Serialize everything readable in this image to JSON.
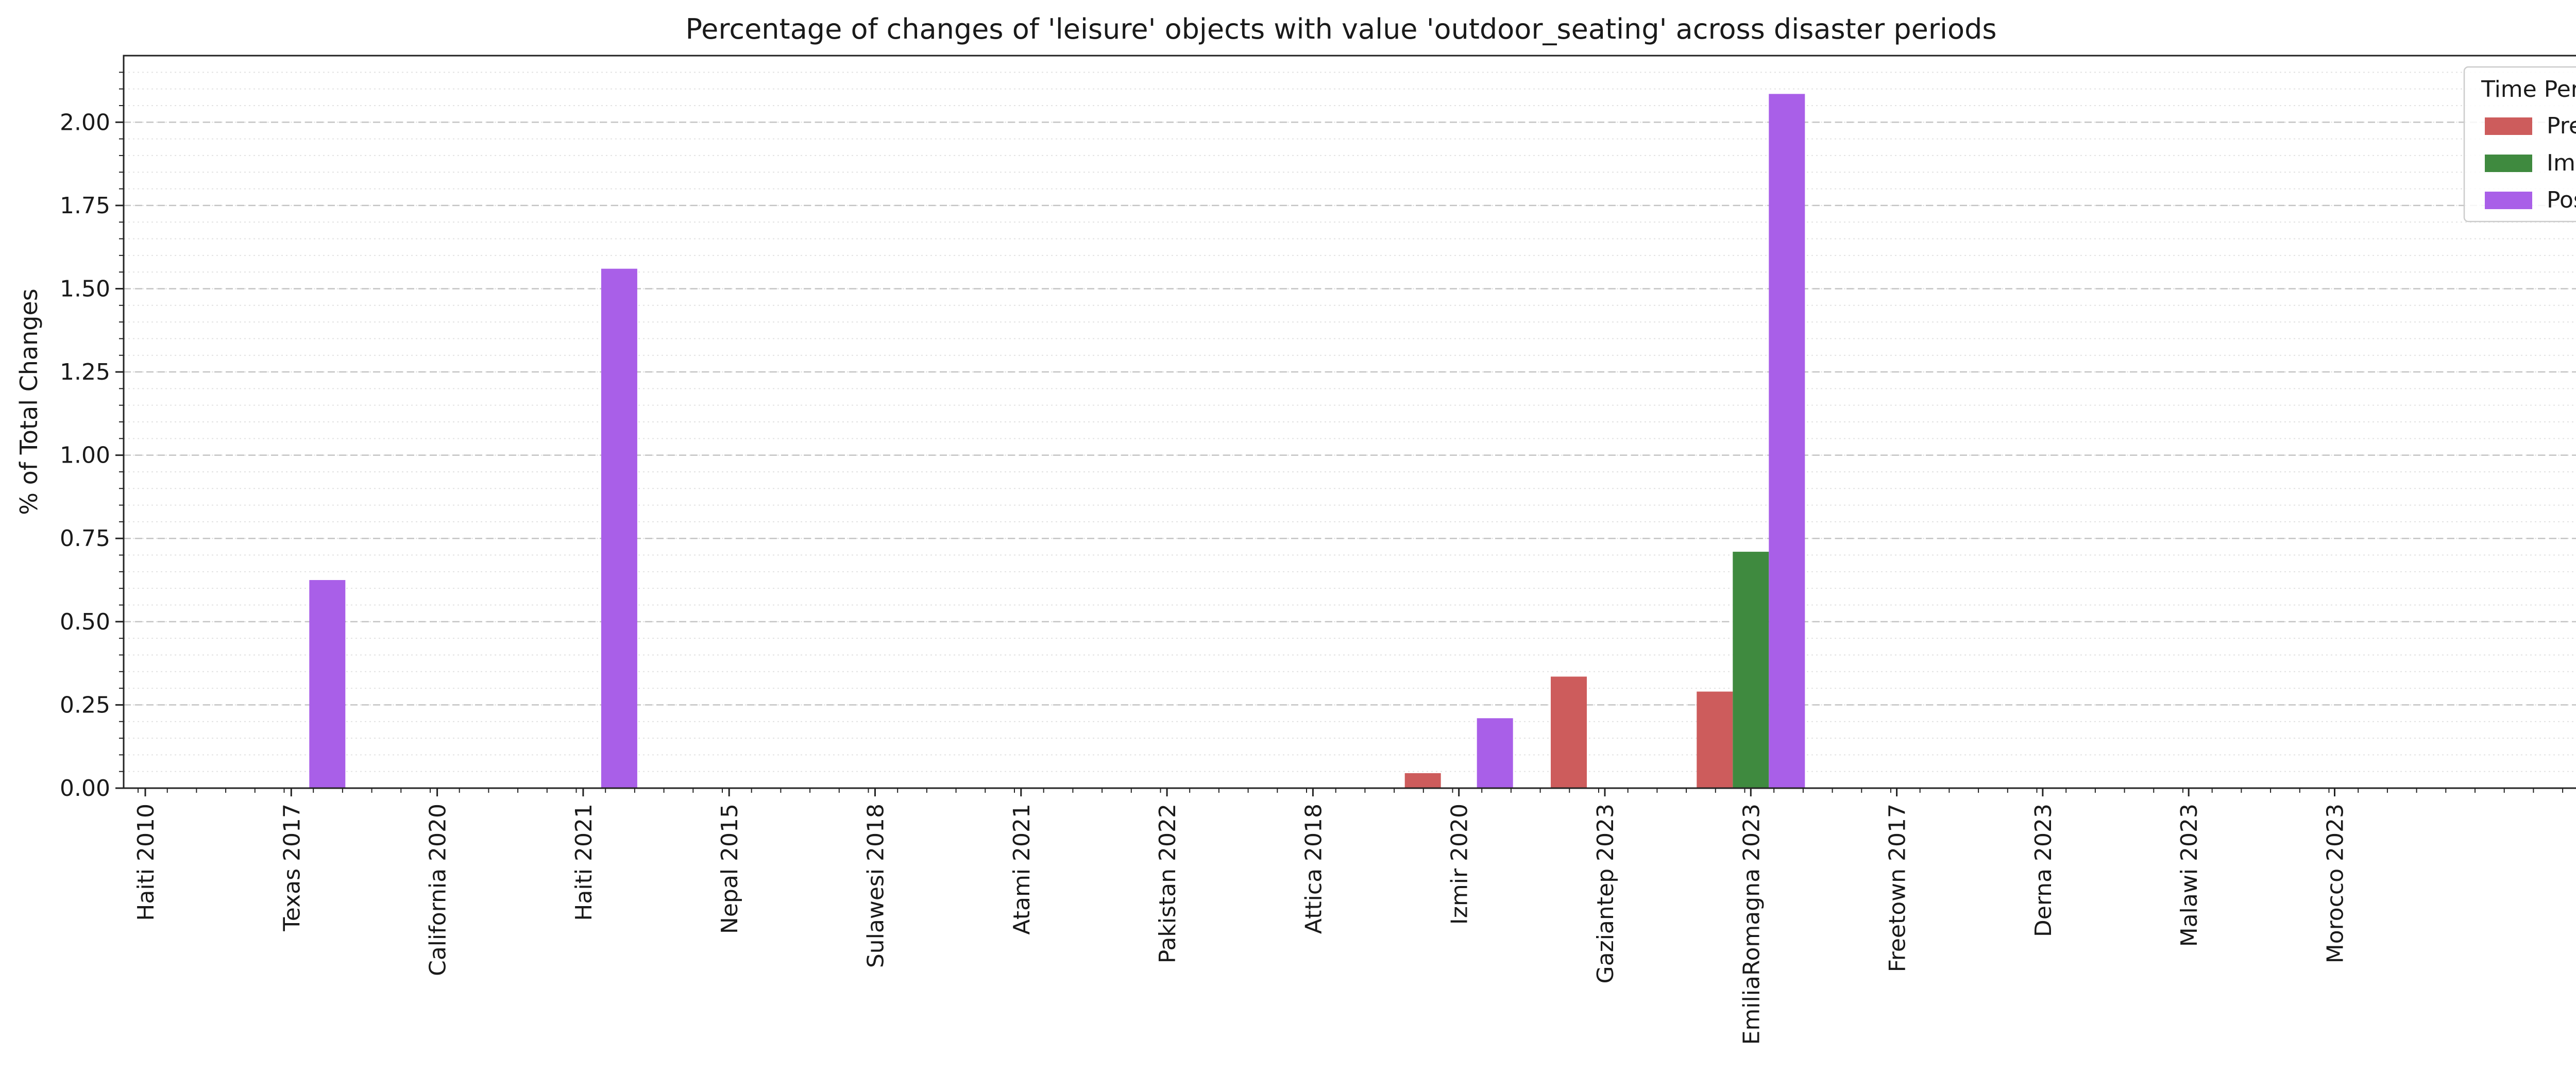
{
  "chart_data": {
    "type": "bar",
    "title": "Percentage of changes of 'leisure' objects with value 'outdoor_seating' across disaster periods",
    "xlabel": "",
    "ylabel": "% of Total Changes",
    "ylim": [
      0,
      2.2
    ],
    "yticks": [
      "0.00",
      "0.25",
      "0.50",
      "0.75",
      "1.00",
      "1.25",
      "1.50",
      "1.75",
      "2.00"
    ],
    "grid": true,
    "legend": {
      "title": "Time Period",
      "placement": "top-right"
    },
    "categories": [
      "Haiti 2010",
      "Texas 2017",
      "California 2020",
      "Haiti 2021",
      "Nepal 2015",
      "Sulawesi 2018",
      "Atami 2021",
      "Pakistan 2022",
      "Attica 2018",
      "Izmir 2020",
      "Gaziantep 2023",
      "EmiliaRomagna 2023",
      "Freetown 2017",
      "Derna 2023",
      "Malawi 2023",
      "Morocco 2023"
    ],
    "series": [
      {
        "name": "Pre",
        "color": "#cd5c5c",
        "values": [
          0,
          0,
          0,
          0,
          0,
          0,
          0,
          0,
          0,
          0.045,
          0.335,
          0.29,
          0,
          0,
          0,
          0
        ]
      },
      {
        "name": "Imm",
        "color": "#3f8a3f",
        "values": [
          0,
          0,
          0,
          0,
          0,
          0,
          0,
          0,
          0,
          0,
          0,
          0.71,
          0,
          0,
          0,
          0
        ]
      },
      {
        "name": "Post",
        "color": "#a95fe8",
        "values": [
          0,
          0.625,
          0,
          1.56,
          0,
          0,
          0,
          0,
          0,
          0.21,
          0,
          2.085,
          0,
          0,
          0,
          0
        ]
      }
    ]
  }
}
